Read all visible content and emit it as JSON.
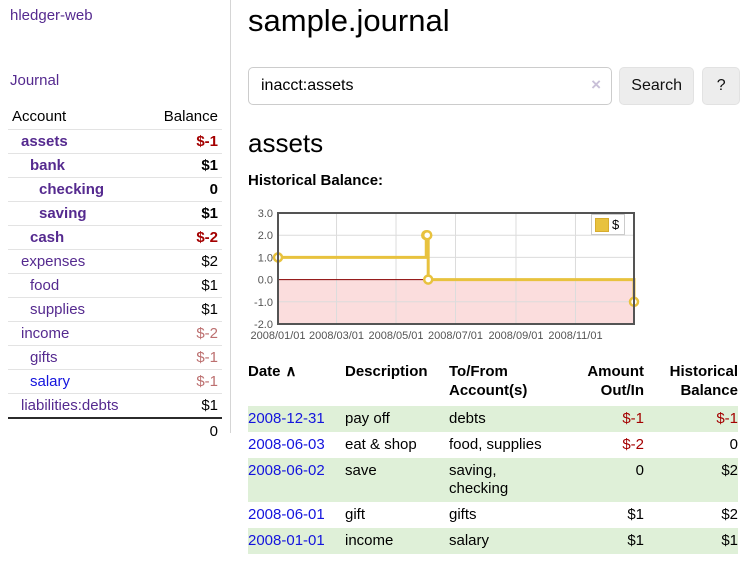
{
  "sidebar": {
    "app_title": "hledger-web",
    "nav": {
      "journal": "Journal"
    },
    "accounts_table": {
      "headers": {
        "account": "Account",
        "balance": "Balance"
      },
      "rows": [
        {
          "account": "assets",
          "indent": 1,
          "bold": true,
          "link_color": "purple",
          "balance": "$-1",
          "balance_classes": "bold red"
        },
        {
          "account": "bank",
          "indent": 2,
          "bold": true,
          "link_color": "purple",
          "balance": "$1",
          "balance_classes": "bold"
        },
        {
          "account": "checking",
          "indent": 3,
          "bold": true,
          "link_color": "purple",
          "balance": "0",
          "balance_classes": "bold"
        },
        {
          "account": "saving",
          "indent": 3,
          "bold": true,
          "link_color": "purple",
          "balance": "$1",
          "balance_classes": "bold"
        },
        {
          "account": "cash",
          "indent": 2,
          "bold": true,
          "link_color": "purple",
          "balance": "$-2",
          "balance_classes": "bold red"
        },
        {
          "account": "expenses",
          "indent": 1,
          "bold": false,
          "link_color": "purple",
          "balance": "$2",
          "balance_classes": ""
        },
        {
          "account": "food",
          "indent": 2,
          "bold": false,
          "link_color": "purple",
          "balance": "$1",
          "balance_classes": ""
        },
        {
          "account": "supplies",
          "indent": 2,
          "bold": false,
          "link_color": "purple",
          "balance": "$1",
          "balance_classes": ""
        },
        {
          "account": "income",
          "indent": 1,
          "bold": false,
          "link_color": "purple",
          "balance": "$-2",
          "balance_classes": "rose"
        },
        {
          "account": "gifts",
          "indent": 2,
          "bold": false,
          "link_color": "purple",
          "balance": "$-1",
          "balance_classes": "rose"
        },
        {
          "account": "salary",
          "indent": 2,
          "bold": false,
          "link_color": "blue",
          "balance": "$-1",
          "balance_classes": "rose"
        },
        {
          "account": "liabilities:debts",
          "indent": 1,
          "bold": false,
          "link_color": "purple",
          "balance": "$1",
          "balance_classes": ""
        }
      ],
      "total": "0"
    }
  },
  "main": {
    "title": "sample.journal",
    "search": {
      "value": "inacct:assets",
      "clear_icon": "×",
      "search_button": "Search",
      "help_button": "?"
    },
    "account_heading": "assets",
    "chart_title": "Historical Balance:"
  },
  "chart_data": {
    "type": "line",
    "title": "Historical Balance:",
    "step": true,
    "series": [
      {
        "name": "$",
        "x": [
          "2008-01-01",
          "2008-06-01",
          "2008-06-02",
          "2008-06-03",
          "2008-12-31"
        ],
        "values": [
          1,
          2,
          2,
          0,
          -1
        ]
      }
    ],
    "x_range": [
      "2008-01-01",
      "2008-12-31"
    ],
    "ylim": [
      -2,
      3
    ],
    "y_ticks": [
      "3.0",
      "2.0",
      "1.0",
      "0.0",
      "-1.0",
      "-2.0"
    ],
    "x_ticks": [
      {
        "date": "2008-01-01",
        "label": "2008/01/01"
      },
      {
        "date": "2008-03-01",
        "label": "2008/03/01"
      },
      {
        "date": "2008-05-01",
        "label": "2008/05/01"
      },
      {
        "date": "2008-07-01",
        "label": "2008/07/01"
      },
      {
        "date": "2008-09-01",
        "label": "2008/09/01"
      },
      {
        "date": "2008-11-01",
        "label": "2008/11/01"
      }
    ],
    "legend_label": "$",
    "legend_position": "top-right",
    "grid": true,
    "colors": {
      "line": "#e8c23e",
      "marker_fill": "#ffffff",
      "negative_region": "#fbdddd",
      "zero_line": "#8b0000",
      "grid": "#dcdcdc",
      "border": "#545454"
    }
  },
  "register_table": {
    "headers": {
      "date": "Date",
      "sort_icon": "∧",
      "description": "Description",
      "accounts": "To/From Account(s)",
      "amount": "Amount Out/In",
      "balance": "Historical Balance"
    },
    "rows": [
      {
        "date": "2008-12-31",
        "description": "pay off",
        "accounts": "debts",
        "amount": "$-1",
        "amount_red": true,
        "balance": "$-1",
        "balance_red": true,
        "shaded": true
      },
      {
        "date": "2008-06-03",
        "description": "eat & shop",
        "accounts": "food, supplies",
        "amount": "$-2",
        "amount_red": true,
        "balance": "0",
        "balance_red": false,
        "shaded": false
      },
      {
        "date": "2008-06-02",
        "description": "save",
        "accounts": "saving, checking",
        "amount": "0",
        "amount_red": false,
        "balance": "$2",
        "balance_red": false,
        "shaded": true
      },
      {
        "date": "2008-06-01",
        "description": "gift",
        "accounts": "gifts",
        "amount": "$1",
        "amount_red": false,
        "balance": "$2",
        "balance_red": false,
        "shaded": false
      },
      {
        "date": "2008-01-01",
        "description": "income",
        "accounts": "salary",
        "amount": "$1",
        "amount_red": false,
        "balance": "$1",
        "balance_red": false,
        "shaded": true
      }
    ]
  },
  "colors": {
    "purple_link": "#552a8f",
    "blue_link": "#1414dd",
    "negative_red": "#a40000",
    "muted_red": "#bc6f6f",
    "row_stripe_green": "#dff0d8"
  }
}
